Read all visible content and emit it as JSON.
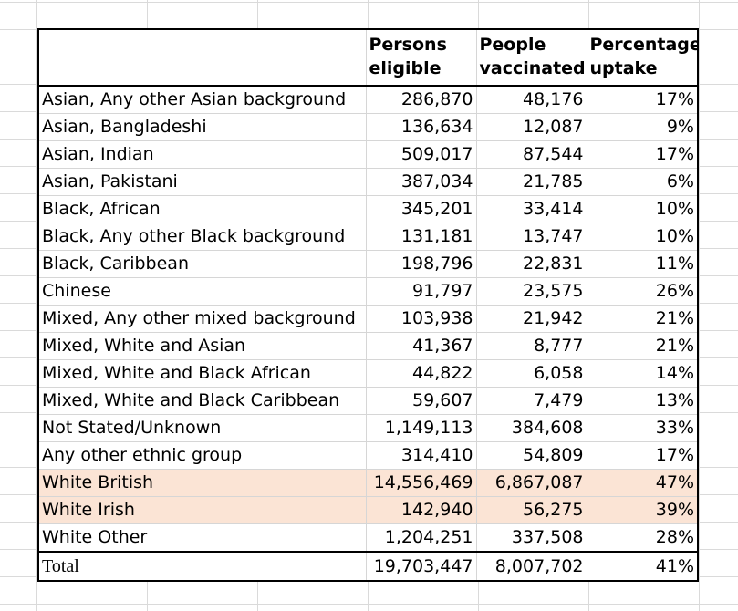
{
  "headers": [
    "",
    "Persons eligible",
    "People vaccinated",
    "Percentage uptake"
  ],
  "header_lines": [
    [],
    [
      "Persons",
      "eligible"
    ],
    [
      "People",
      "vaccinated"
    ],
    [
      "Percentage",
      "uptake"
    ]
  ],
  "rows": [
    {
      "group": "Asian, Any other Asian background",
      "eligible": "286,870",
      "vaccinated": "48,176",
      "uptake": "17%"
    },
    {
      "group": "Asian, Bangladeshi",
      "eligible": "136,634",
      "vaccinated": "12,087",
      "uptake": "9%"
    },
    {
      "group": "Asian, Indian",
      "eligible": "509,017",
      "vaccinated": "87,544",
      "uptake": "17%"
    },
    {
      "group": "Asian, Pakistani",
      "eligible": "387,034",
      "vaccinated": "21,785",
      "uptake": "6%"
    },
    {
      "group": "Black, African",
      "eligible": "345,201",
      "vaccinated": "33,414",
      "uptake": "10%"
    },
    {
      "group": "Black, Any other Black background",
      "eligible": "131,181",
      "vaccinated": "13,747",
      "uptake": "10%"
    },
    {
      "group": "Black, Caribbean",
      "eligible": "198,796",
      "vaccinated": "22,831",
      "uptake": "11%"
    },
    {
      "group": "Chinese",
      "eligible": "91,797",
      "vaccinated": "23,575",
      "uptake": "26%"
    },
    {
      "group": "Mixed, Any other mixed background",
      "eligible": "103,938",
      "vaccinated": "21,942",
      "uptake": "21%"
    },
    {
      "group": "Mixed, White and Asian",
      "eligible": "41,367",
      "vaccinated": "8,777",
      "uptake": "21%"
    },
    {
      "group": "Mixed, White and Black African",
      "eligible": "44,822",
      "vaccinated": "6,058",
      "uptake": "14%"
    },
    {
      "group": "Mixed, White and Black Caribbean",
      "eligible": "59,607",
      "vaccinated": "7,479",
      "uptake": "13%"
    },
    {
      "group": "Not Stated/Unknown",
      "eligible": "1,149,113",
      "vaccinated": "384,608",
      "uptake": "33%"
    },
    {
      "group": "Any other ethnic group",
      "eligible": "314,410",
      "vaccinated": "54,809",
      "uptake": "17%"
    },
    {
      "group": "White British",
      "eligible": "14,556,469",
      "vaccinated": "6,867,087",
      "uptake": "47%",
      "highlighted": true
    },
    {
      "group": "White Irish",
      "eligible": "142,940",
      "vaccinated": "56,275",
      "uptake": "39%",
      "highlighted": true
    },
    {
      "group": "White Other",
      "eligible": "1,204,251",
      "vaccinated": "337,508",
      "uptake": "28%"
    }
  ],
  "total": {
    "group": "Total",
    "eligible": "19,703,447",
    "vaccinated": "8,007,702",
    "uptake": "41%"
  },
  "colors": {
    "highlight": "#fbe4d5",
    "border": "#000000",
    "gridline": "#d6d6d6"
  }
}
